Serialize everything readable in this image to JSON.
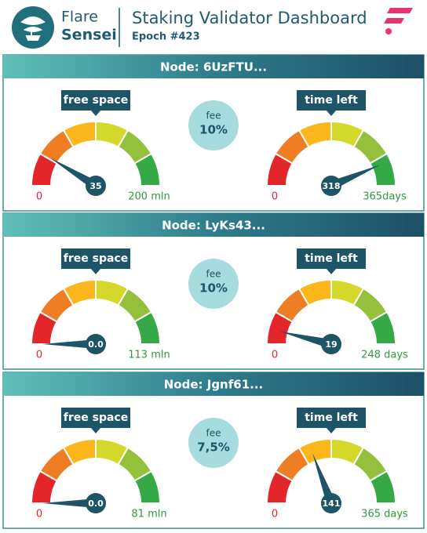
{
  "header": {
    "brand_top": "Flare",
    "brand_bottom": "Sensei",
    "title": "Staking Validator Dashboard",
    "subtitle": "Epoch #423"
  },
  "panels": [
    {
      "node": "Node: 6UzFTU...",
      "fee_label": "fee",
      "fee": "10%",
      "gauges": [
        {
          "label": "free space",
          "min": 0,
          "max": {
            "value": 200,
            "label": "200 mln"
          },
          "value": 35
        },
        {
          "label": "time left",
          "min": 0,
          "max": {
            "value": 365,
            "label": "365days"
          },
          "value": 318
        }
      ]
    },
    {
      "node": "Node: LyKs43...",
      "fee_label": "fee",
      "fee": "10%",
      "gauges": [
        {
          "label": "free space",
          "min": 0,
          "max": {
            "value": 113,
            "label": "113 mln"
          },
          "value": {
            "value": 0,
            "label": "0.0"
          }
        },
        {
          "label": "time left",
          "min": 0,
          "max": {
            "value": 248,
            "label": "248 days"
          },
          "value": 19
        }
      ]
    },
    {
      "node": "Node: Jgnf61...",
      "fee_label": "fee",
      "fee": "7,5%",
      "gauges": [
        {
          "label": "free space",
          "min": 0,
          "max": {
            "value": 81,
            "label": "81 mln"
          },
          "value": {
            "value": 0,
            "label": "0.0"
          }
        },
        {
          "label": "time left",
          "min": 0,
          "max": {
            "value": 365,
            "label": "365 days"
          },
          "value": 141
        }
      ]
    }
  ]
}
